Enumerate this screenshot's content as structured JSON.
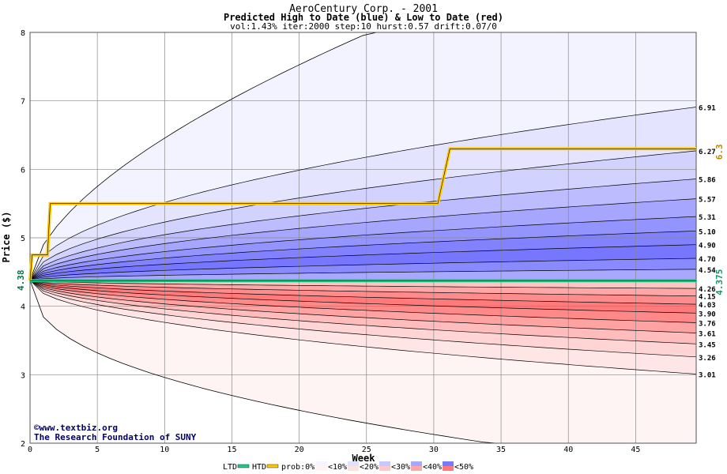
{
  "chart_data": {
    "type": "area",
    "title": "AeroCentury Corp. - 2001",
    "subtitle": "Predicted High to Date (blue) &  Low to Date (red)",
    "params": "vol:1.43% iter:2000 step:10 hurst:0.57 drift:0.07/0",
    "xlabel": "Week",
    "ylabel": "Price ($)",
    "xlim": [
      0,
      49.5
    ],
    "ylim": [
      2,
      8
    ],
    "x_ticks": [
      0,
      5,
      10,
      15,
      20,
      25,
      30,
      35,
      40,
      45
    ],
    "y_ticks": [
      2,
      3,
      4,
      5,
      6,
      7,
      8
    ],
    "grid": true,
    "start_price": 4.38,
    "start_label": "4.38",
    "high_percentile_ends": [
      {
        "label": "6.91",
        "value": 6.91
      },
      {
        "label": "6.27",
        "value": 6.27
      },
      {
        "label": "5.86",
        "value": 5.86
      },
      {
        "label": "5.57",
        "value": 5.57
      },
      {
        "label": "5.31",
        "value": 5.31
      },
      {
        "label": "5.10",
        "value": 5.1
      },
      {
        "label": "4.90",
        "value": 4.9
      },
      {
        "label": "4.70",
        "value": 4.7
      },
      {
        "label": "4.54",
        "value": 4.54
      }
    ],
    "low_percentile_ends": [
      {
        "label": "4.26",
        "value": 4.26
      },
      {
        "label": "4.15",
        "value": 4.15
      },
      {
        "label": "4.03",
        "value": 4.03
      },
      {
        "label": "3.90",
        "value": 3.9
      },
      {
        "label": "3.76",
        "value": 3.76
      },
      {
        "label": "3.61",
        "value": 3.61
      },
      {
        "label": "3.45",
        "value": 3.45
      },
      {
        "label": "3.26",
        "value": 3.26
      },
      {
        "label": "3.01",
        "value": 3.01
      }
    ],
    "high_outer_end": 8.0,
    "low_outer_end": 2.0,
    "actual_high_to_date": {
      "name": "HTD",
      "end_label": "6.3",
      "points": [
        [
          0,
          4.38
        ],
        [
          0.15,
          4.75
        ],
        [
          1.3,
          4.75
        ],
        [
          1.5,
          5.5
        ],
        [
          30.3,
          5.5
        ],
        [
          31.2,
          6.3
        ],
        [
          49.5,
          6.3
        ]
      ]
    },
    "actual_low_to_date": {
      "name": "LTD",
      "end_label": "4.375",
      "points": [
        [
          0,
          4.375
        ],
        [
          49.5,
          4.375
        ]
      ]
    },
    "watermark": [
      "©www.textbiz.org",
      "The Research Foundation of SUNY"
    ],
    "legend": {
      "placement": "bottom",
      "items": [
        {
          "label": "LTD",
          "color": "#22cc88",
          "kind": "line"
        },
        {
          "label": "HTD",
          "color": "#ffcc00",
          "kind": "line"
        },
        {
          "label": "prob:0%",
          "kind": "text"
        },
        {
          "label": "<10%",
          "color": "#f5f5ff",
          "color2": "#fff3f3",
          "kind": "swatch"
        },
        {
          "label": "<20%",
          "color": "#e0e0ff",
          "color2": "#ffe0e0",
          "kind": "swatch"
        },
        {
          "label": "<30%",
          "color": "#c8c8ff",
          "color2": "#ffc8c8",
          "kind": "swatch"
        },
        {
          "label": "<40%",
          "color": "#a8a8ff",
          "color2": "#ffa6a6",
          "kind": "swatch"
        },
        {
          "label": "<50%",
          "color": "#7a7aff",
          "color2": "#ff7a7a",
          "kind": "swatch"
        }
      ]
    },
    "colors": {
      "blue_bands": [
        "#f3f3ff",
        "#e4e4ff",
        "#d2d2ff",
        "#bcbcff",
        "#a6a6ff",
        "#9494ff",
        "#8282ff",
        "#7676ff",
        "#8a8aff",
        "#a8a8ff"
      ],
      "red_bands": [
        "#fff4f4",
        "#ffe6e6",
        "#ffd4d4",
        "#ffbcbc",
        "#ffa2a2",
        "#ff8888",
        "#ff7a7a",
        "#ff8c8c",
        "#ffa6a6",
        "#ffc4c4"
      ],
      "htd": "#ffcc00",
      "ltd": "#22cc88",
      "grid": "#888888",
      "title": "#000000",
      "start_label": "#007744",
      "htd_label": "#bb8800",
      "ltd_label": "#119966",
      "watermark": "#000066"
    }
  }
}
